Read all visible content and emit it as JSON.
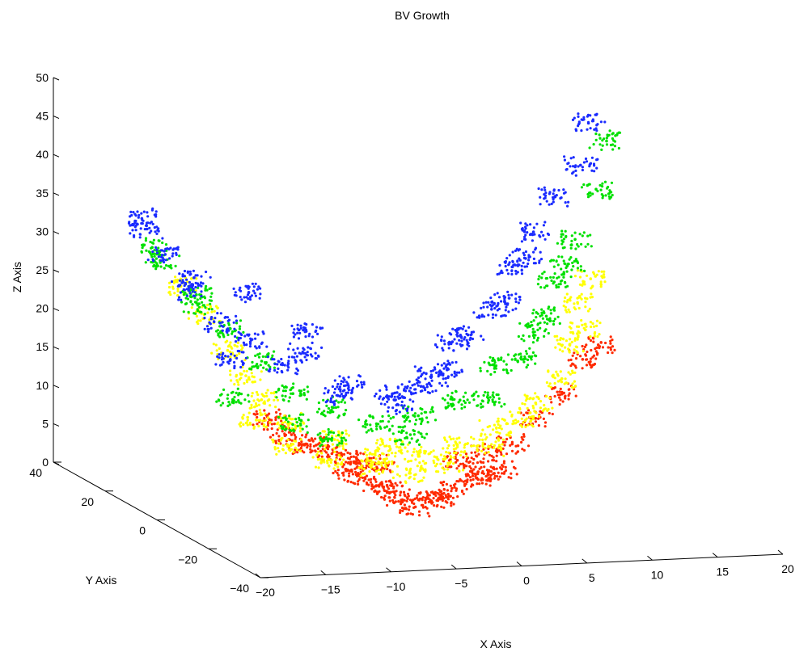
{
  "chart_data": {
    "type": "scatter",
    "title": "BV Growth",
    "xlabel": "X Axis",
    "ylabel": "Y Axis",
    "zlabel": "Z Axis",
    "projection": "3d",
    "grid": false,
    "legend": "none",
    "xlim": [
      -20,
      20
    ],
    "ylim": [
      -40,
      40
    ],
    "zlim": [
      0,
      50
    ],
    "x_ticks": [
      "−20",
      "−15",
      "−10",
      "−5",
      "0",
      "5",
      "10",
      "15",
      "20"
    ],
    "y_ticks": [
      "−40",
      "−20",
      "0",
      "20",
      "40"
    ],
    "z_ticks": [
      "0",
      "5",
      "10",
      "15",
      "20",
      "25",
      "30",
      "35",
      "40",
      "45",
      "50"
    ],
    "colors": {
      "red": "#ff2a00",
      "yellow": "#ffff00",
      "green": "#00e000",
      "blue": "#1a2bff"
    },
    "series": [
      {
        "color": "red",
        "points": [
          [
            -4,
            -4,
            4
          ],
          [
            -2,
            -4,
            2
          ],
          [
            0,
            -4,
            2
          ],
          [
            2,
            -3,
            3
          ],
          [
            -5,
            -3,
            5
          ],
          [
            4,
            -3,
            4
          ],
          [
            -6,
            -3,
            6
          ],
          [
            6,
            -2,
            5
          ],
          [
            -1,
            -4,
            1
          ],
          [
            1,
            -4,
            2
          ],
          [
            3,
            0,
            6
          ],
          [
            5,
            -1,
            7
          ],
          [
            7,
            -1,
            8
          ],
          [
            9,
            0,
            11
          ],
          [
            11,
            0,
            14
          ],
          [
            12,
            -3,
            19
          ],
          [
            13,
            -4,
            21
          ],
          [
            -5,
            -2,
            7
          ],
          [
            -7,
            -2,
            8
          ],
          [
            -9,
            0,
            9
          ],
          [
            -10,
            1,
            10
          ],
          [
            -11,
            2,
            12
          ],
          [
            -8,
            -1,
            9
          ],
          [
            -3,
            -3,
            3
          ],
          [
            -3,
            0,
            6
          ],
          [
            4,
            -3,
            5
          ]
        ]
      },
      {
        "color": "yellow",
        "points": [
          [
            -3,
            0,
            7
          ],
          [
            0,
            0,
            7
          ],
          [
            3,
            0,
            8
          ],
          [
            6,
            0,
            10
          ],
          [
            9,
            0,
            13
          ],
          [
            12,
            2,
            20
          ],
          [
            13,
            1,
            22
          ],
          [
            14,
            4,
            28
          ],
          [
            -6,
            2,
            9
          ],
          [
            -9,
            4,
            11
          ],
          [
            -11,
            5,
            14
          ],
          [
            -12,
            6,
            17
          ],
          [
            -13,
            8,
            20
          ],
          [
            -14,
            12,
            24
          ],
          [
            -15,
            16,
            27
          ],
          [
            -12,
            2,
            12
          ],
          [
            -10,
            0,
            9
          ],
          [
            -7,
            -1,
            7
          ],
          [
            -4,
            -2,
            6
          ],
          [
            -1,
            -2,
            5
          ],
          [
            2,
            -2,
            6
          ],
          [
            5,
            -2,
            8
          ],
          [
            8,
            -1,
            11
          ],
          [
            11,
            0,
            16
          ],
          [
            13,
            4,
            25
          ],
          [
            -2,
            1,
            8
          ]
        ]
      },
      {
        "color": "green",
        "points": [
          [
            -2,
            6,
            10
          ],
          [
            1,
            5,
            11
          ],
          [
            4,
            4,
            13
          ],
          [
            7,
            6,
            17
          ],
          [
            10,
            6,
            21
          ],
          [
            12,
            8,
            27
          ],
          [
            14,
            10,
            32
          ],
          [
            16,
            12,
            38
          ],
          [
            17,
            13,
            44
          ],
          [
            -5,
            8,
            12
          ],
          [
            -8,
            8,
            14
          ],
          [
            -10,
            10,
            18
          ],
          [
            -12,
            12,
            22
          ],
          [
            -14,
            15,
            26
          ],
          [
            -16,
            18,
            30
          ],
          [
            -16,
            22,
            31
          ],
          [
            -13,
            6,
            14
          ],
          [
            -6,
            3,
            9
          ],
          [
            0,
            3,
            9
          ],
          [
            6,
            3,
            13
          ],
          [
            9,
            4,
            18
          ],
          [
            11,
            6,
            23
          ],
          [
            13,
            8,
            29
          ],
          [
            -9,
            3,
            11
          ],
          [
            -14,
            14,
            25
          ]
        ]
      },
      {
        "color": "blue",
        "points": [
          [
            -6,
            14,
            18
          ],
          [
            -3,
            12,
            14
          ],
          [
            0,
            10,
            13
          ],
          [
            3,
            10,
            15
          ],
          [
            5,
            12,
            19
          ],
          [
            8,
            12,
            23
          ],
          [
            10,
            14,
            28
          ],
          [
            12,
            16,
            32
          ],
          [
            14,
            18,
            36
          ],
          [
            16,
            18,
            40
          ],
          [
            17,
            20,
            45
          ],
          [
            -10,
            14,
            20
          ],
          [
            -12,
            16,
            22
          ],
          [
            -14,
            18,
            26
          ],
          [
            -15,
            22,
            30
          ],
          [
            -16,
            24,
            33
          ],
          [
            -12,
            12,
            18
          ],
          [
            -8,
            12,
            17
          ],
          [
            -4,
            10,
            13
          ],
          [
            0,
            8,
            12
          ],
          [
            2,
            9,
            14
          ],
          [
            4,
            9,
            16
          ],
          [
            6,
            11,
            20
          ],
          [
            9,
            12,
            24
          ],
          [
            11,
            14,
            29
          ],
          [
            -5,
            18,
            20
          ],
          [
            -9,
            20,
            25
          ],
          [
            -13,
            21,
            27
          ],
          [
            -16,
            26,
            34
          ]
        ]
      }
    ]
  }
}
